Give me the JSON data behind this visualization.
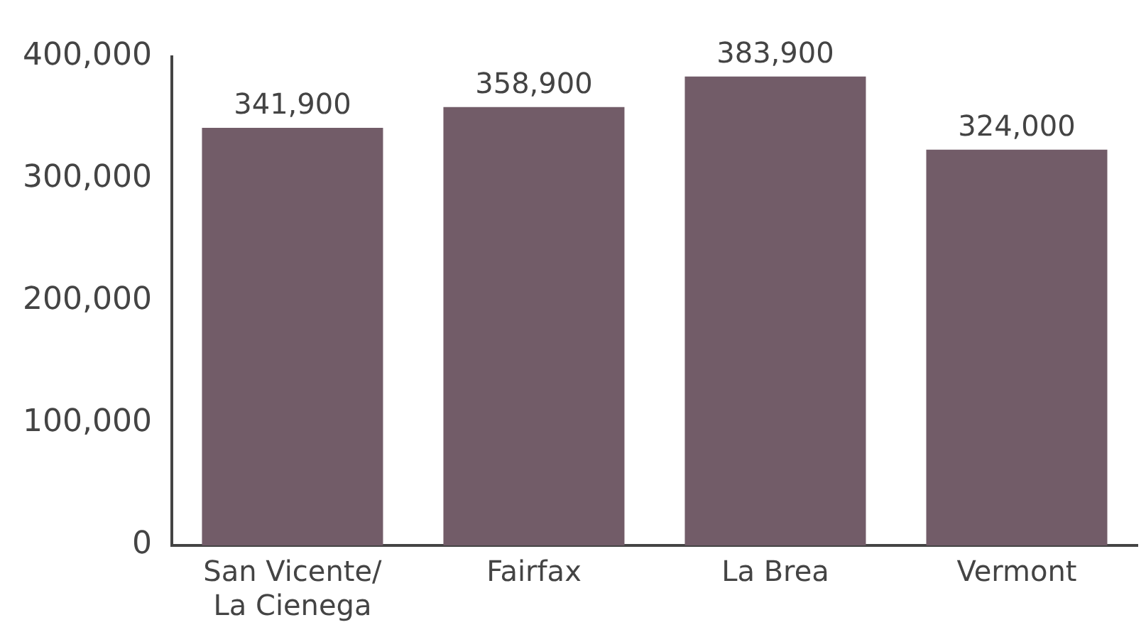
{
  "chart_data": {
    "type": "bar",
    "categories": [
      "San Vicente/\nLa Cienega",
      "Fairfax",
      "La Brea",
      "Vermont"
    ],
    "values": [
      341900,
      358900,
      383900,
      324000
    ],
    "value_labels": [
      "341,900",
      "358,900",
      "383,900",
      "324,000"
    ],
    "color": "#725c68",
    "ylim": [
      0,
      400000
    ],
    "yticks": [
      0,
      {
        "value": 100000,
        "label": "100,000"
      },
      {
        "value": 200000,
        "label": "200,000"
      },
      {
        "value": 300000,
        "label": "300,000"
      },
      {
        "value": 400000,
        "label": "400,000"
      }
    ],
    "grid": false,
    "legend": false
  }
}
